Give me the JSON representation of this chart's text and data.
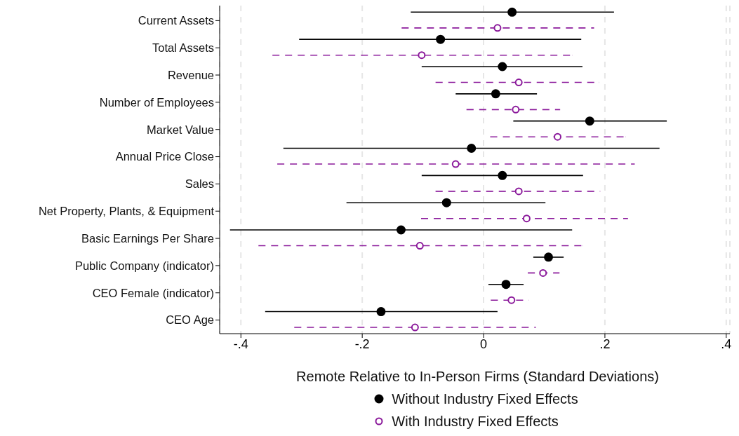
{
  "chart_data": {
    "type": "scatter",
    "orientation": "horizontal",
    "xlabel": "Remote Relative to In-Person Firms (Standard Deviations)",
    "categories": [
      "Current Assets",
      "Total Assets",
      "Revenue",
      "Number of Employees",
      "Market Value",
      "Annual Price Close",
      "Sales",
      "Net Property, Plants, & Equipment",
      "Basic Earnings Per Share",
      "Public Company (indicator)",
      "CEO Female (indicator)",
      "CEO Age"
    ],
    "series": [
      {
        "name": "Without Industry Fixed Effects",
        "color": "#000000",
        "marker": "circle",
        "line_style": "solid",
        "values": [
          0.047,
          -0.071,
          0.031,
          0.02,
          0.175,
          -0.02,
          0.031,
          -0.061,
          -0.136,
          0.107,
          0.037,
          -0.169
        ],
        "errors": [
          [
            -0.12,
            0.215
          ],
          [
            -0.304,
            0.161
          ],
          [
            -0.102,
            0.163
          ],
          [
            -0.046,
            0.088
          ],
          [
            0.049,
            0.302
          ],
          [
            -0.33,
            0.29
          ],
          [
            -0.102,
            0.164
          ],
          [
            -0.226,
            0.102
          ],
          [
            -0.418,
            0.146
          ],
          [
            0.082,
            0.132
          ],
          [
            0.008,
            0.066
          ],
          [
            -0.36,
            0.023
          ]
        ]
      },
      {
        "name": "With Industry Fixed Effects",
        "color": "#8b1a9b",
        "marker": "circle",
        "line_style": "dashed",
        "values": [
          0.023,
          -0.102,
          0.058,
          0.053,
          0.122,
          -0.046,
          0.058,
          0.071,
          -0.105,
          0.098,
          0.046,
          -0.113
        ],
        "errors": [
          [
            -0.135,
            0.182
          ],
          [
            -0.348,
            0.146
          ],
          [
            -0.079,
            0.19
          ],
          [
            -0.028,
            0.126
          ],
          [
            0.011,
            0.234
          ],
          [
            -0.34,
            0.249
          ],
          [
            -0.079,
            0.192
          ],
          [
            -0.103,
            0.238
          ],
          [
            -0.371,
            0.163
          ],
          [
            0.073,
            0.125
          ],
          [
            0.012,
            0.074
          ],
          [
            -0.312,
            0.086
          ]
        ]
      }
    ],
    "xlim": [
      -0.435,
      0.406
    ],
    "xticks": [
      {
        "value": -0.4,
        "label": "-.4"
      },
      {
        "value": -0.2,
        "label": "-.2"
      },
      0,
      {
        "value": 0.2,
        "label": ".2"
      },
      {
        "value": 0.4,
        "label": ".4"
      }
    ],
    "grid": "x",
    "legend": "bottom"
  }
}
